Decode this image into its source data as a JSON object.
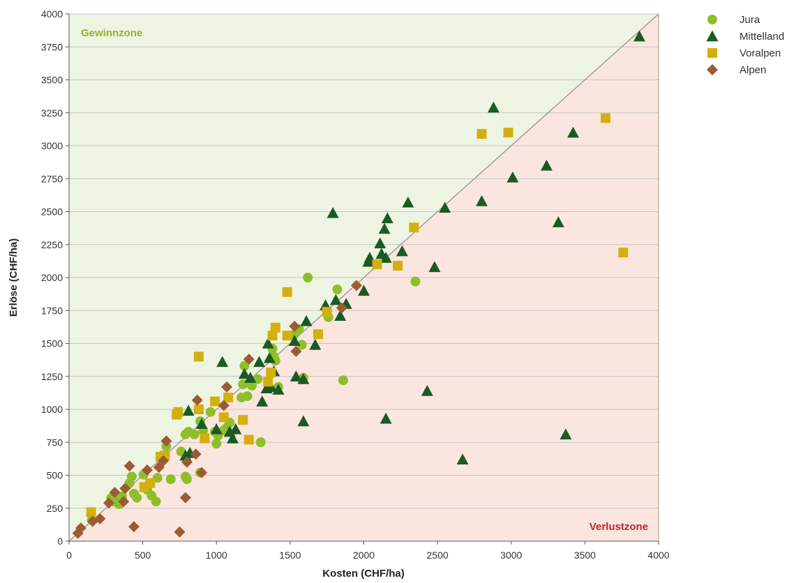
{
  "chart_data": {
    "type": "scatter",
    "xlabel": "Kosten (CHF/ha)",
    "ylabel": "Erlöse (CHF/ha)",
    "xlim": [
      0,
      4000
    ],
    "ylim": [
      0,
      4000
    ],
    "xticks": [
      0,
      500,
      1000,
      1500,
      2000,
      2500,
      3000,
      3500,
      4000
    ],
    "yticks": [
      0,
      250,
      500,
      750,
      1000,
      1250,
      1500,
      1750,
      2000,
      2250,
      2500,
      2750,
      3000,
      3250,
      3500,
      3750,
      4000
    ],
    "grid": "horizontal",
    "legend_position": "top-right",
    "diagonal_line": "y = x",
    "zones": {
      "gain": {
        "label": "Gewinnzone",
        "fill": "#eef4e2",
        "label_color": "#8ab82a"
      },
      "loss": {
        "label": "Verlustzone",
        "fill": "#fbe6df",
        "label_color": "#b5282a"
      }
    },
    "series": [
      {
        "name": "Jura",
        "marker": "circle",
        "color": "#8ebf2b",
        "points": [
          [
            155,
            160
          ],
          [
            285,
            325
          ],
          [
            305,
            300
          ],
          [
            320,
            330
          ],
          [
            340,
            280
          ],
          [
            360,
            340
          ],
          [
            410,
            440
          ],
          [
            425,
            490
          ],
          [
            440,
            360
          ],
          [
            460,
            330
          ],
          [
            505,
            505
          ],
          [
            530,
            390
          ],
          [
            560,
            345
          ],
          [
            590,
            300
          ],
          [
            600,
            480
          ],
          [
            660,
            720
          ],
          [
            690,
            470
          ],
          [
            760,
            680
          ],
          [
            790,
            490
          ],
          [
            790,
            810
          ],
          [
            800,
            470
          ],
          [
            810,
            830
          ],
          [
            850,
            810
          ],
          [
            890,
            520
          ],
          [
            890,
            910
          ],
          [
            910,
            840
          ],
          [
            960,
            980
          ],
          [
            990,
            830
          ],
          [
            1000,
            740
          ],
          [
            1010,
            800
          ],
          [
            1050,
            840
          ],
          [
            1070,
            860
          ],
          [
            1090,
            900
          ],
          [
            1170,
            1090
          ],
          [
            1180,
            1190
          ],
          [
            1190,
            1330
          ],
          [
            1210,
            1100
          ],
          [
            1240,
            1180
          ],
          [
            1280,
            1230
          ],
          [
            1300,
            750
          ],
          [
            1380,
            1460
          ],
          [
            1390,
            1400
          ],
          [
            1400,
            1370
          ],
          [
            1420,
            1170
          ],
          [
            1530,
            1570
          ],
          [
            1560,
            1610
          ],
          [
            1580,
            1490
          ],
          [
            1590,
            1240
          ],
          [
            1620,
            2000
          ],
          [
            1760,
            1700
          ],
          [
            1820,
            1910
          ],
          [
            1860,
            1220
          ],
          [
            2350,
            1970
          ]
        ]
      },
      {
        "name": "Mittelland",
        "marker": "triangle",
        "color": "#1a5a25",
        "points": [
          [
            790,
            650
          ],
          [
            810,
            990
          ],
          [
            820,
            670
          ],
          [
            900,
            890
          ],
          [
            1000,
            850
          ],
          [
            1040,
            1360
          ],
          [
            1090,
            830
          ],
          [
            1110,
            780
          ],
          [
            1130,
            850
          ],
          [
            1190,
            1270
          ],
          [
            1230,
            1240
          ],
          [
            1290,
            1360
          ],
          [
            1310,
            1060
          ],
          [
            1340,
            1160
          ],
          [
            1350,
            1500
          ],
          [
            1360,
            1390
          ],
          [
            1370,
            1170
          ],
          [
            1390,
            1290
          ],
          [
            1420,
            1150
          ],
          [
            1530,
            1520
          ],
          [
            1540,
            1250
          ],
          [
            1590,
            1230
          ],
          [
            1590,
            910
          ],
          [
            1610,
            1670
          ],
          [
            1670,
            1490
          ],
          [
            1740,
            1790
          ],
          [
            1790,
            2490
          ],
          [
            1810,
            1830
          ],
          [
            1840,
            1710
          ],
          [
            1880,
            1800
          ],
          [
            2000,
            1900
          ],
          [
            2030,
            2120
          ],
          [
            2040,
            2150
          ],
          [
            2110,
            2260
          ],
          [
            2120,
            2180
          ],
          [
            2140,
            2370
          ],
          [
            2150,
            2150
          ],
          [
            2150,
            930
          ],
          [
            2160,
            2450
          ],
          [
            2260,
            2200
          ],
          [
            2300,
            2570
          ],
          [
            2430,
            1140
          ],
          [
            2480,
            2080
          ],
          [
            2550,
            2530
          ],
          [
            2670,
            620
          ],
          [
            2800,
            2580
          ],
          [
            2880,
            3290
          ],
          [
            3010,
            2760
          ],
          [
            3240,
            2850
          ],
          [
            3320,
            2420
          ],
          [
            3370,
            810
          ],
          [
            3420,
            3100
          ],
          [
            3870,
            3830
          ]
        ]
      },
      {
        "name": "Voralpen",
        "marker": "square",
        "color": "#d4b00e",
        "points": [
          [
            150,
            220
          ],
          [
            510,
            410
          ],
          [
            550,
            440
          ],
          [
            620,
            640
          ],
          [
            650,
            650
          ],
          [
            730,
            960
          ],
          [
            740,
            980
          ],
          [
            880,
            1400
          ],
          [
            880,
            1000
          ],
          [
            920,
            780
          ],
          [
            990,
            1060
          ],
          [
            1050,
            940
          ],
          [
            1080,
            1090
          ],
          [
            1180,
            920
          ],
          [
            1220,
            770
          ],
          [
            1350,
            1210
          ],
          [
            1370,
            1280
          ],
          [
            1380,
            1560
          ],
          [
            1400,
            1620
          ],
          [
            1480,
            1560
          ],
          [
            1480,
            1890
          ],
          [
            1690,
            1570
          ],
          [
            1750,
            1740
          ],
          [
            2090,
            2100
          ],
          [
            2230,
            2090
          ],
          [
            2340,
            2380
          ],
          [
            2800,
            3090
          ],
          [
            2980,
            3100
          ],
          [
            3640,
            3210
          ],
          [
            3760,
            2190
          ]
        ]
      },
      {
        "name": "Alpen",
        "marker": "diamond",
        "color": "#9c5a34",
        "points": [
          [
            60,
            60
          ],
          [
            80,
            100
          ],
          [
            160,
            150
          ],
          [
            210,
            170
          ],
          [
            270,
            290
          ],
          [
            310,
            370
          ],
          [
            370,
            300
          ],
          [
            380,
            400
          ],
          [
            410,
            570
          ],
          [
            440,
            110
          ],
          [
            530,
            540
          ],
          [
            610,
            560
          ],
          [
            640,
            610
          ],
          [
            660,
            760
          ],
          [
            750,
            70
          ],
          [
            790,
            330
          ],
          [
            800,
            600
          ],
          [
            860,
            660
          ],
          [
            870,
            1070
          ],
          [
            900,
            520
          ],
          [
            1050,
            1030
          ],
          [
            1070,
            1170
          ],
          [
            1220,
            1380
          ],
          [
            1530,
            1630
          ],
          [
            1540,
            1440
          ],
          [
            1850,
            1770
          ],
          [
            1950,
            1940
          ]
        ]
      }
    ]
  }
}
